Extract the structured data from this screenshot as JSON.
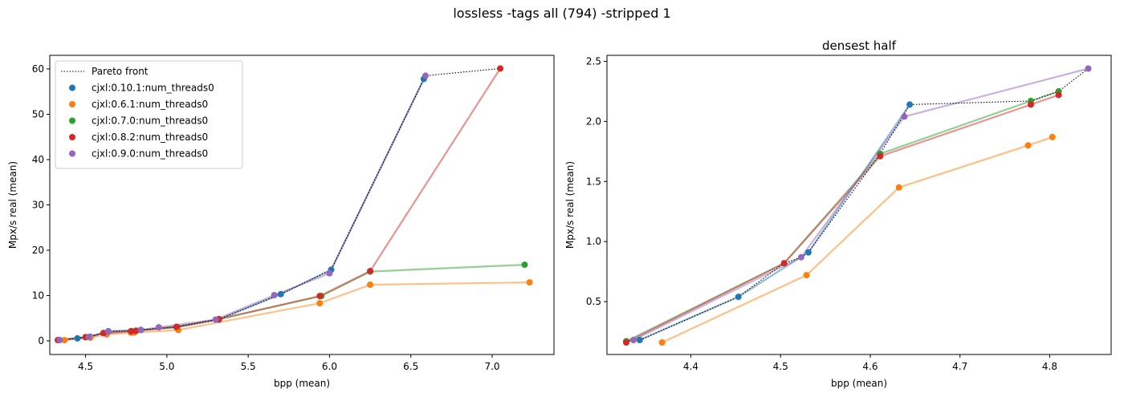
{
  "figure": {
    "suptitle": "lossless -tags all (794) -stripped 1"
  },
  "legend": {
    "location": "upper-left",
    "pareto_label": "Pareto front",
    "entries": [
      {
        "label": "cjxl:0.10.1:num_threads0",
        "color": "#1f77b4"
      },
      {
        "label": "cjxl:0.6.1:num_threads0",
        "color": "#ff7f0e"
      },
      {
        "label": "cjxl:0.7.0:num_threads0",
        "color": "#2ca02c"
      },
      {
        "label": "cjxl:0.8.2:num_threads0",
        "color": "#d62728"
      },
      {
        "label": "cjxl:0.9.0:num_threads0",
        "color": "#9467bd"
      }
    ]
  },
  "chart_data": [
    {
      "type": "line",
      "title": "",
      "xlabel": "bpp (mean)",
      "ylabel": "Mpx/s real (mean)",
      "xlim": [
        4.28,
        7.38
      ],
      "ylim": [
        -3.0,
        63.0
      ],
      "xticks": [
        4.5,
        5.0,
        5.5,
        6.0,
        6.5,
        7.0
      ],
      "xtick_labels": [
        "4.5",
        "5.0",
        "5.5",
        "6.0",
        "6.5",
        "7.0"
      ],
      "yticks": [
        0,
        10,
        20,
        30,
        40,
        50,
        60
      ],
      "ytick_labels": [
        "0",
        "10",
        "20",
        "30",
        "40",
        "50",
        "60"
      ],
      "grid": false,
      "series": [
        {
          "name": "cjxl:0.10.1:num_threads0",
          "color": "#1f77b4",
          "x": [
            4.34,
            4.45,
            4.53,
            4.64,
            4.84,
            5.06,
            5.32,
            5.7,
            6.01,
            6.58
          ],
          "y": [
            0.18,
            0.55,
            0.9,
            2.14,
            2.4,
            3.0,
            4.7,
            10.3,
            15.7,
            57.8
          ]
        },
        {
          "name": "cjxl:0.6.1:num_threads0",
          "color": "#ff7f0e",
          "x": [
            4.37,
            4.53,
            4.63,
            4.78,
            4.8,
            5.07,
            5.94,
            6.25,
            7.23
          ],
          "y": [
            0.16,
            0.72,
            1.45,
            1.8,
            1.87,
            2.4,
            8.3,
            12.4,
            12.9
          ]
        },
        {
          "name": "cjxl:0.7.0:num_threads0",
          "color": "#2ca02c",
          "x": [
            4.33,
            4.5,
            4.61,
            4.78,
            4.81,
            5.06,
            5.32,
            5.95,
            6.25,
            7.2
          ],
          "y": [
            0.16,
            0.82,
            1.73,
            2.17,
            2.25,
            3.1,
            4.8,
            9.9,
            15.3,
            16.8
          ]
        },
        {
          "name": "cjxl:0.8.2:num_threads0",
          "color": "#d62728",
          "x": [
            4.33,
            4.5,
            4.61,
            4.78,
            4.81,
            5.06,
            5.32,
            5.94,
            6.25,
            7.05
          ],
          "y": [
            0.16,
            0.82,
            1.71,
            2.14,
            2.22,
            3.1,
            4.8,
            9.9,
            15.4,
            60.1
          ]
        },
        {
          "name": "cjxl:0.9.0:num_threads0",
          "color": "#9467bd",
          "x": [
            4.34,
            4.52,
            4.64,
            4.84,
            4.95,
            5.3,
            5.66,
            6.0,
            6.59
          ],
          "y": [
            0.17,
            0.87,
            2.04,
            2.44,
            3.0,
            4.7,
            10.1,
            14.9,
            58.5
          ]
        }
      ],
      "pareto_front": {
        "x": [
          4.33,
          4.34,
          4.45,
          4.53,
          4.64,
          4.78,
          4.81,
          4.84,
          5.06,
          5.32,
          5.7,
          6.01,
          6.59,
          7.05
        ],
        "y": [
          0.16,
          0.18,
          0.55,
          0.9,
          2.14,
          2.17,
          2.25,
          2.44,
          3.1,
          4.8,
          10.3,
          15.7,
          58.5,
          60.1
        ]
      }
    },
    {
      "type": "line",
      "title": "densest half",
      "xlabel": "bpp (mean)",
      "ylabel": "Mpx/s real (mean)",
      "xlim": [
        4.3065,
        4.8685
      ],
      "ylim": [
        0.06,
        2.55
      ],
      "xticks": [
        4.4,
        4.5,
        4.6,
        4.7,
        4.8
      ],
      "xtick_labels": [
        "4.4",
        "4.5",
        "4.6",
        "4.7",
        "4.8"
      ],
      "yticks": [
        0.5,
        1.0,
        1.5,
        2.0,
        2.5
      ],
      "ytick_labels": [
        "0.5",
        "1.0",
        "1.5",
        "2.0",
        "2.5"
      ],
      "grid": false,
      "series": [
        {
          "name": "cjxl:0.10.1:num_threads0",
          "color": "#1f77b4",
          "x": [
            4.343,
            4.453,
            4.531,
            4.644
          ],
          "y": [
            0.18,
            0.54,
            0.91,
            2.14
          ]
        },
        {
          "name": "cjxl:0.6.1:num_threads0",
          "color": "#ff7f0e",
          "x": [
            4.368,
            4.529,
            4.632,
            4.776,
            4.803
          ],
          "y": [
            0.16,
            0.72,
            1.45,
            1.8,
            1.87
          ]
        },
        {
          "name": "cjxl:0.7.0:num_threads0",
          "color": "#2ca02c",
          "x": [
            4.328,
            4.504,
            4.611,
            4.779,
            4.81
          ],
          "y": [
            0.17,
            0.82,
            1.73,
            2.17,
            2.25
          ]
        },
        {
          "name": "cjxl:0.8.2:num_threads0",
          "color": "#d62728",
          "x": [
            4.328,
            4.504,
            4.611,
            4.779,
            4.81
          ],
          "y": [
            0.16,
            0.82,
            1.71,
            2.14,
            2.22
          ]
        },
        {
          "name": "cjxl:0.9.0:num_threads0",
          "color": "#9467bd",
          "x": [
            4.336,
            4.523,
            4.638,
            4.843
          ],
          "y": [
            0.18,
            0.87,
            2.04,
            2.44
          ]
        }
      ],
      "pareto_front": {
        "x": [
          4.328,
          4.343,
          4.453,
          4.504,
          4.523,
          4.531,
          4.611,
          4.644,
          4.779,
          4.81,
          4.843
        ],
        "y": [
          0.17,
          0.18,
          0.54,
          0.82,
          0.87,
          0.91,
          1.73,
          2.14,
          2.17,
          2.25,
          2.44
        ]
      }
    }
  ]
}
